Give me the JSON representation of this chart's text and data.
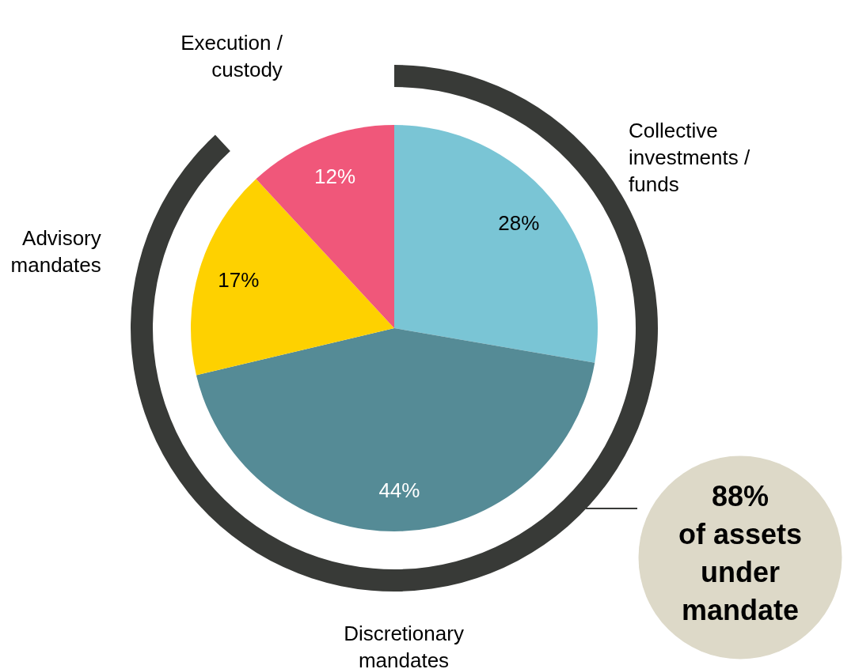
{
  "chart_data": {
    "type": "pie",
    "categories": [
      "Collective investments / funds",
      "Discretionary mandates",
      "Advisory mandates",
      "Execution / custody"
    ],
    "values": [
      28,
      44,
      17,
      12
    ],
    "colors": [
      "#7ac5d5",
      "#558b96",
      "#fed100",
      "#f0577a"
    ],
    "value_labels": [
      "28%",
      "44%",
      "17%",
      "12%"
    ],
    "annotations": [
      "88% of assets under mandate"
    ]
  }
}
